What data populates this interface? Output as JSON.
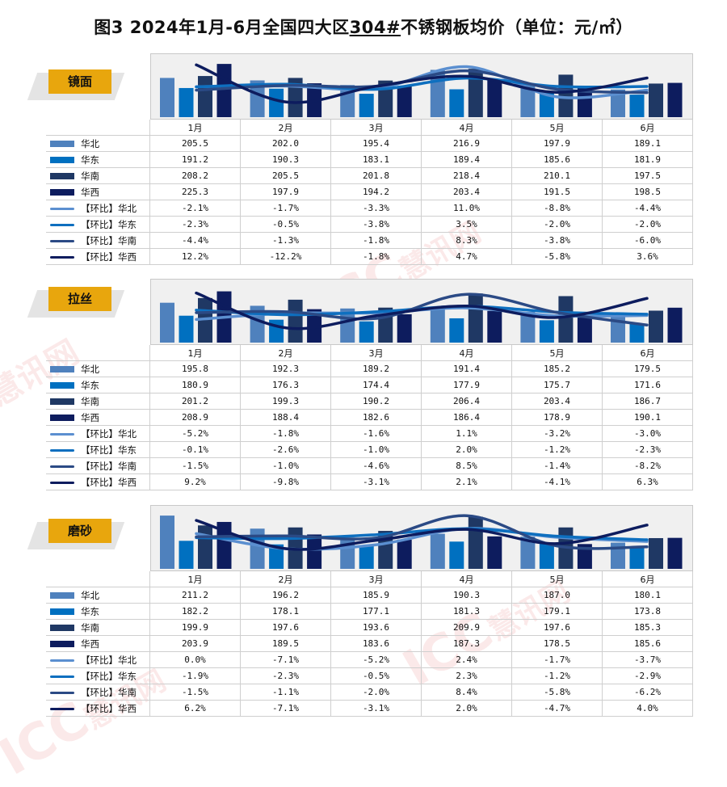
{
  "title": {
    "prefix": "图3  2024年1月-6月全国四大区",
    "underlined": "304#",
    "suffix": "不锈钢板均价（单位：元/㎡）"
  },
  "watermark": {
    "icc": "ICC",
    "brand": "慧讯网"
  },
  "colors": {
    "华北": "#4f81bd",
    "华东": "#0070c0",
    "华南": "#1f3864",
    "华西": "#0d1c5e",
    "【环比】华北": "#5b8fd0",
    "【环比】华东": "#0e6fbf",
    "【环比】华南": "#2b4a85",
    "【环比】华西": "#0d1c5e"
  },
  "chart_data": [
    {
      "type": "bar",
      "tag": "镜面",
      "categories": [
        "1月",
        "2月",
        "3月",
        "4月",
        "5月",
        "6月"
      ],
      "series": [
        {
          "name": "华北",
          "kind": "bar",
          "values": [
            205.5,
            202.0,
            195.4,
            216.9,
            197.9,
            189.1
          ],
          "labels": [
            "205.5",
            "202.0",
            "195.4",
            "216.9",
            "197.9",
            "189.1"
          ]
        },
        {
          "name": "华东",
          "kind": "bar",
          "values": [
            191.2,
            190.3,
            183.1,
            189.4,
            185.6,
            181.9
          ],
          "labels": [
            "191.2",
            "190.3",
            "183.1",
            "189.4",
            "185.6",
            "181.9"
          ]
        },
        {
          "name": "华南",
          "kind": "bar",
          "values": [
            208.2,
            205.5,
            201.8,
            218.4,
            210.1,
            197.5
          ],
          "labels": [
            "208.2",
            "205.5",
            "201.8",
            "218.4",
            "210.1",
            "197.5"
          ]
        },
        {
          "name": "华西",
          "kind": "bar",
          "values": [
            225.3,
            197.9,
            194.2,
            203.4,
            191.5,
            198.5
          ],
          "labels": [
            "225.3",
            "197.9",
            "194.2",
            "203.4",
            "191.5",
            "198.5"
          ]
        },
        {
          "name": "【环比】华北",
          "kind": "line",
          "values": [
            -2.1,
            -1.7,
            -3.3,
            11.0,
            -8.8,
            -4.4
          ],
          "labels": [
            "-2.1%",
            "-1.7%",
            "-3.3%",
            "11.0%",
            "-8.8%",
            "-4.4%"
          ]
        },
        {
          "name": "【环比】华东",
          "kind": "line",
          "values": [
            -2.3,
            -0.5,
            -3.8,
            3.5,
            -2.0,
            -2.0
          ],
          "labels": [
            "-2.3%",
            "-0.5%",
            "-3.8%",
            "3.5%",
            "-2.0%",
            "-2.0%"
          ]
        },
        {
          "name": "【环比】华南",
          "kind": "line",
          "values": [
            -4.4,
            -1.3,
            -1.8,
            8.3,
            -3.8,
            -6.0
          ],
          "labels": [
            "-4.4%",
            "-1.3%",
            "-1.8%",
            "8.3%",
            "-3.8%",
            "-6.0%"
          ]
        },
        {
          "name": "【环比】华西",
          "kind": "line",
          "values": [
            12.2,
            -12.2,
            -1.8,
            4.7,
            -5.8,
            3.6
          ],
          "labels": [
            "12.2%",
            "-12.2%",
            "-1.8%",
            "4.7%",
            "-5.8%",
            "3.6%"
          ]
        }
      ],
      "bar_ylim": [
        150,
        230
      ],
      "line_ylim": [
        -20,
        15
      ]
    },
    {
      "type": "bar",
      "tag": "拉丝",
      "categories": [
        "1月",
        "2月",
        "3月",
        "4月",
        "5月",
        "6月"
      ],
      "series": [
        {
          "name": "华北",
          "kind": "bar",
          "values": [
            195.8,
            192.3,
            189.2,
            191.4,
            185.2,
            179.5
          ],
          "labels": [
            "195.8",
            "192.3",
            "189.2",
            "191.4",
            "185.2",
            "179.5"
          ]
        },
        {
          "name": "华东",
          "kind": "bar",
          "values": [
            180.9,
            176.3,
            174.4,
            177.9,
            175.7,
            171.6
          ],
          "labels": [
            "180.9",
            "176.3",
            "174.4",
            "177.9",
            "175.7",
            "171.6"
          ]
        },
        {
          "name": "华南",
          "kind": "bar",
          "values": [
            201.2,
            199.3,
            190.2,
            206.4,
            203.4,
            186.7
          ],
          "labels": [
            "201.2",
            "199.3",
            "190.2",
            "206.4",
            "203.4",
            "186.7"
          ]
        },
        {
          "name": "华西",
          "kind": "bar",
          "values": [
            208.9,
            188.4,
            182.6,
            186.4,
            178.9,
            190.1
          ],
          "labels": [
            "208.9",
            "188.4",
            "182.6",
            "186.4",
            "178.9",
            "190.1"
          ]
        },
        {
          "name": "【环比】华北",
          "kind": "line",
          "values": [
            -5.2,
            -1.8,
            -1.6,
            1.1,
            -3.2,
            -3.0
          ],
          "labels": [
            "-5.2%",
            "-1.8%",
            "-1.6%",
            "1.1%",
            "-3.2%",
            "-3.0%"
          ]
        },
        {
          "name": "【环比】华东",
          "kind": "line",
          "values": [
            -0.1,
            -2.6,
            -1.0,
            2.0,
            -1.2,
            -2.3
          ],
          "labels": [
            "-0.1%",
            "-2.6%",
            "-1.0%",
            "2.0%",
            "-1.2%",
            "-2.3%"
          ]
        },
        {
          "name": "【环比】华南",
          "kind": "line",
          "values": [
            -1.5,
            -1.0,
            -4.6,
            8.5,
            -1.4,
            -8.2
          ],
          "labels": [
            "-1.5%",
            "-1.0%",
            "-4.6%",
            "8.5%",
            "-1.4%",
            "-8.2%"
          ]
        },
        {
          "name": "【环比】华西",
          "kind": "line",
          "values": [
            9.2,
            -9.8,
            -3.1,
            2.1,
            -4.1,
            6.3
          ],
          "labels": [
            "9.2%",
            "-9.8%",
            "-3.1%",
            "2.1%",
            "-4.1%",
            "6.3%"
          ]
        }
      ],
      "bar_ylim": [
        150,
        215
      ],
      "line_ylim": [
        -16,
        13
      ]
    },
    {
      "type": "bar",
      "tag": "磨砂",
      "categories": [
        "1月",
        "2月",
        "3月",
        "4月",
        "5月",
        "6月"
      ],
      "series": [
        {
          "name": "华北",
          "kind": "bar",
          "values": [
            211.2,
            196.2,
            185.9,
            190.3,
            187.0,
            180.1
          ],
          "labels": [
            "211.2",
            "196.2",
            "185.9",
            "190.3",
            "187.0",
            "180.1"
          ]
        },
        {
          "name": "华东",
          "kind": "bar",
          "values": [
            182.2,
            178.1,
            177.1,
            181.3,
            179.1,
            173.8
          ],
          "labels": [
            "182.2",
            "178.1",
            "177.1",
            "181.3",
            "179.1",
            "173.8"
          ]
        },
        {
          "name": "华南",
          "kind": "bar",
          "values": [
            199.9,
            197.6,
            193.6,
            209.9,
            197.6,
            185.3
          ],
          "labels": [
            "199.9",
            "197.6",
            "193.6",
            "209.9",
            "197.6",
            "185.3"
          ]
        },
        {
          "name": "华西",
          "kind": "bar",
          "values": [
            203.9,
            189.5,
            183.6,
            187.3,
            178.5,
            185.6
          ],
          "labels": [
            "203.9",
            "189.5",
            "183.6",
            "187.3",
            "178.5",
            "185.6"
          ]
        },
        {
          "name": "【环比】华北",
          "kind": "line",
          "values": [
            0.0,
            -7.1,
            -5.2,
            2.4,
            -1.7,
            -3.7
          ],
          "labels": [
            "0.0%",
            "-7.1%",
            "-5.2%",
            "2.4%",
            "-1.7%",
            "-3.7%"
          ]
        },
        {
          "name": "【环比】华东",
          "kind": "line",
          "values": [
            -1.9,
            -2.3,
            -0.5,
            2.3,
            -1.2,
            -2.9
          ],
          "labels": [
            "-1.9%",
            "-2.3%",
            "-0.5%",
            "2.3%",
            "-1.2%",
            "-2.9%"
          ]
        },
        {
          "name": "【环比】华南",
          "kind": "line",
          "values": [
            -1.5,
            -1.1,
            -2.0,
            8.4,
            -5.8,
            -6.2
          ],
          "labels": [
            "-1.5%",
            "-1.1%",
            "-2.0%",
            "8.4%",
            "-5.8%",
            "-6.2%"
          ]
        },
        {
          "name": "【环比】华西",
          "kind": "line",
          "values": [
            6.2,
            -7.1,
            -3.1,
            2.0,
            -4.7,
            4.0
          ],
          "labels": [
            "6.2%",
            "-7.1%",
            "-3.1%",
            "2.0%",
            "-4.7%",
            "4.0%"
          ]
        }
      ],
      "bar_ylim": [
        150,
        215
      ],
      "line_ylim": [
        -15,
        10
      ]
    }
  ]
}
